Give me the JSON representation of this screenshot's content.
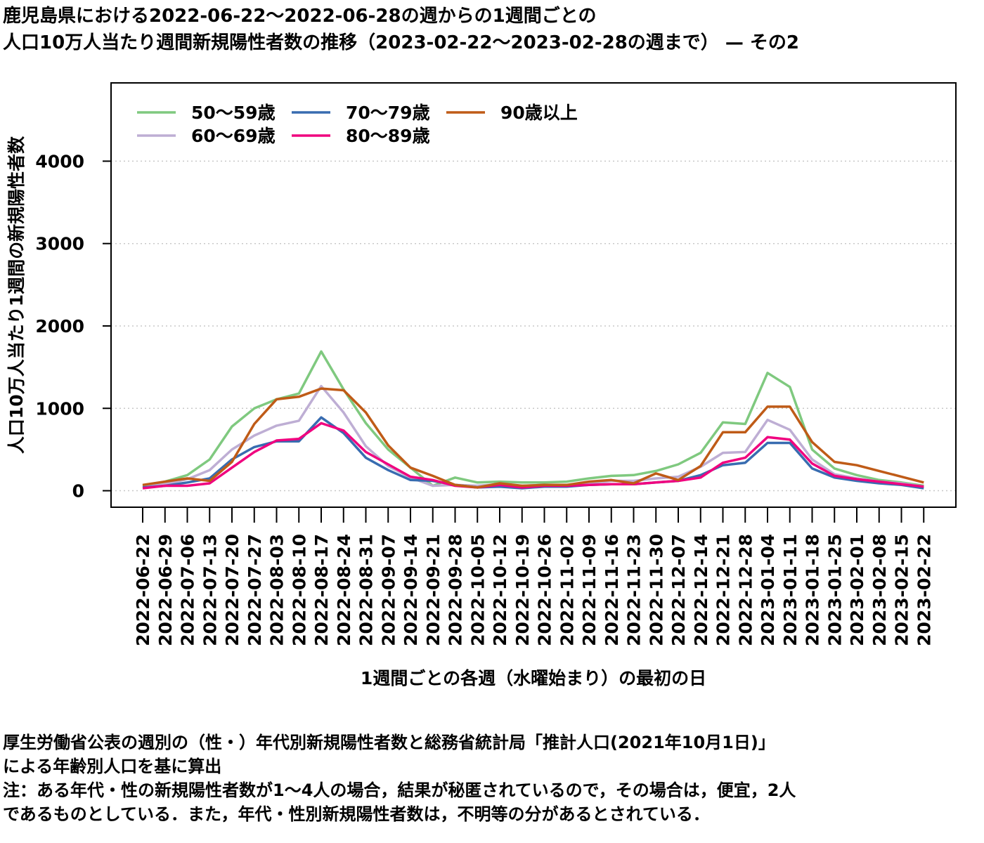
{
  "title": {
    "line1": "鹿児島県における2022-06-22〜2022-06-28の週からの1週間ごとの",
    "line2": "人口10万人当たり週間新規陽性者数の推移（2023-02-22〜2023-02-28の週まで） — その2"
  },
  "notes": {
    "line1": "厚生労働省公表の週別の（性・）年代別新規陽性者数と総務省統計局「推計人口(2021年10月1日)」",
    "line2": "による年齢別人口を基に算出",
    "line3": "注：ある年代・性の新規陽性者数が1〜4人の場合，結果が秘匿されているので，その場合は，便宜，2人",
    "line4": "であるものとしている．また，年代・性別新規陽性者数は，不明等の分があるとされている．"
  },
  "chart_data": {
    "type": "line",
    "xlabel": "1週間ごとの各週（水曜始まり）の最初の日",
    "ylabel": "人口10万人当たり1週間の新規陽性者数",
    "ylim": [
      -200,
      4950
    ],
    "yticks": [
      0,
      1000,
      2000,
      3000,
      4000
    ],
    "grid": "horizontal-dotted",
    "legend_position": "top-left",
    "x": [
      "2022-06-22",
      "2022-06-29",
      "2022-07-06",
      "2022-07-13",
      "2022-07-20",
      "2022-07-27",
      "2022-08-03",
      "2022-08-10",
      "2022-08-17",
      "2022-08-24",
      "2022-08-31",
      "2022-09-07",
      "2022-09-14",
      "2022-09-21",
      "2022-09-28",
      "2022-10-05",
      "2022-10-12",
      "2022-10-19",
      "2022-10-26",
      "2022-11-02",
      "2022-11-09",
      "2022-11-16",
      "2022-11-23",
      "2022-11-30",
      "2022-12-07",
      "2022-12-14",
      "2022-12-21",
      "2022-12-28",
      "2023-01-04",
      "2023-01-11",
      "2023-01-18",
      "2023-01-25",
      "2023-02-01",
      "2023-02-08",
      "2023-02-15",
      "2023-02-22"
    ],
    "series": [
      {
        "name": "50〜59歳",
        "color": "#7fc97f",
        "values": [
          60,
          110,
          190,
          380,
          780,
          1000,
          1110,
          1180,
          1690,
          1230,
          820,
          500,
          280,
          60,
          160,
          100,
          110,
          100,
          100,
          110,
          150,
          180,
          190,
          240,
          320,
          460,
          830,
          810,
          1430,
          1260,
          500,
          270,
          190,
          130,
          100,
          60
        ]
      },
      {
        "name": "60〜69歳",
        "color": "#beaed4",
        "values": [
          50,
          80,
          140,
          250,
          500,
          670,
          790,
          850,
          1270,
          950,
          540,
          300,
          160,
          60,
          70,
          60,
          80,
          60,
          70,
          70,
          90,
          120,
          120,
          150,
          170,
          290,
          460,
          470,
          860,
          740,
          380,
          200,
          150,
          110,
          90,
          50
        ]
      },
      {
        "name": "70〜79歳",
        "color": "#386cb0",
        "values": [
          40,
          60,
          100,
          150,
          380,
          530,
          600,
          600,
          890,
          700,
          400,
          250,
          130,
          120,
          70,
          40,
          50,
          30,
          50,
          50,
          70,
          80,
          80,
          100,
          120,
          190,
          310,
          340,
          580,
          580,
          270,
          160,
          120,
          90,
          70,
          30
        ]
      },
      {
        "name": "80〜89歳",
        "color": "#f0027f",
        "values": [
          30,
          60,
          60,
          90,
          280,
          470,
          610,
          630,
          820,
          730,
          470,
          320,
          170,
          130,
          60,
          40,
          70,
          40,
          60,
          60,
          70,
          80,
          80,
          100,
          120,
          160,
          340,
          400,
          650,
          620,
          330,
          180,
          140,
          110,
          80,
          50
        ]
      },
      {
        "name": "90歳以上",
        "color": "#bf5b17",
        "values": [
          70,
          110,
          150,
          120,
          350,
          810,
          1110,
          1140,
          1240,
          1220,
          950,
          550,
          280,
          180,
          70,
          40,
          90,
          60,
          70,
          70,
          110,
          130,
          90,
          210,
          130,
          300,
          710,
          710,
          1020,
          1020,
          590,
          350,
          310,
          240,
          170,
          100
        ]
      }
    ]
  }
}
